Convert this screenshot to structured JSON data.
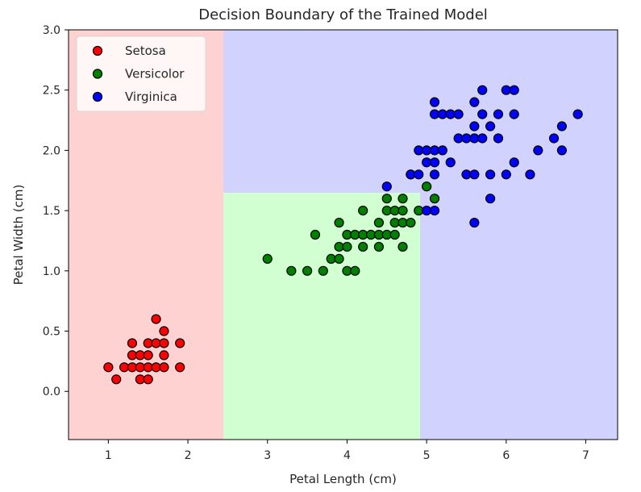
{
  "chart_data": {
    "type": "scatter",
    "title": "Decision Boundary of the Trained Model",
    "xlabel": "Petal Length (cm)",
    "ylabel": "Petal Width (cm)",
    "xlim": [
      0.5,
      7.4
    ],
    "ylim": [
      -0.4,
      3.0
    ],
    "xticks": [
      1,
      2,
      3,
      4,
      5,
      6,
      7
    ],
    "yticks": [
      0.0,
      0.5,
      1.0,
      1.5,
      2.0,
      2.5,
      3.0
    ],
    "xtick_labels": [
      "1",
      "2",
      "3",
      "4",
      "5",
      "6",
      "7"
    ],
    "ytick_labels": [
      "0.0",
      "0.5",
      "1.0",
      "1.5",
      "2.0",
      "2.5",
      "3.0"
    ],
    "grid": false,
    "legend_position": "top-left",
    "decision_regions": [
      {
        "class": "Setosa",
        "color": "#ffd2d2",
        "x": [
          0.5,
          2.45
        ],
        "y": [
          -0.4,
          3.0
        ]
      },
      {
        "class": "Versicolor",
        "color": "#d2ffd2",
        "x": [
          2.45,
          4.92
        ],
        "y": [
          -0.4,
          1.65
        ]
      },
      {
        "class": "Versicolor",
        "color": "#d2ffd2",
        "x": [
          4.92,
          5.45
        ],
        "y": [
          1.55,
          1.72
        ]
      },
      {
        "class": "Virginica",
        "color": "#d2d2ff",
        "x": [
          2.45,
          7.4
        ],
        "y": [
          1.65,
          3.0
        ]
      },
      {
        "class": "Virginica",
        "color": "#d2d2ff",
        "x": [
          4.92,
          7.4
        ],
        "y": [
          -0.4,
          1.65
        ]
      }
    ],
    "series": [
      {
        "name": "Setosa",
        "color": "#ff0000",
        "points": [
          [
            1.0,
            0.2
          ],
          [
            1.1,
            0.1
          ],
          [
            1.2,
            0.2
          ],
          [
            1.3,
            0.2
          ],
          [
            1.3,
            0.3
          ],
          [
            1.3,
            0.4
          ],
          [
            1.4,
            0.1
          ],
          [
            1.4,
            0.2
          ],
          [
            1.4,
            0.3
          ],
          [
            1.5,
            0.1
          ],
          [
            1.5,
            0.2
          ],
          [
            1.5,
            0.3
          ],
          [
            1.5,
            0.4
          ],
          [
            1.6,
            0.2
          ],
          [
            1.6,
            0.4
          ],
          [
            1.6,
            0.6
          ],
          [
            1.7,
            0.2
          ],
          [
            1.7,
            0.3
          ],
          [
            1.7,
            0.4
          ],
          [
            1.7,
            0.5
          ],
          [
            1.9,
            0.2
          ],
          [
            1.9,
            0.4
          ]
        ]
      },
      {
        "name": "Versicolor",
        "color": "#008000",
        "points": [
          [
            3.0,
            1.1
          ],
          [
            3.3,
            1.0
          ],
          [
            3.5,
            1.0
          ],
          [
            3.6,
            1.3
          ],
          [
            3.7,
            1.0
          ],
          [
            3.8,
            1.1
          ],
          [
            3.9,
            1.1
          ],
          [
            3.9,
            1.2
          ],
          [
            3.9,
            1.4
          ],
          [
            4.0,
            1.0
          ],
          [
            4.0,
            1.2
          ],
          [
            4.0,
            1.3
          ],
          [
            4.1,
            1.0
          ],
          [
            4.1,
            1.3
          ],
          [
            4.2,
            1.2
          ],
          [
            4.2,
            1.3
          ],
          [
            4.2,
            1.5
          ],
          [
            4.3,
            1.3
          ],
          [
            4.4,
            1.2
          ],
          [
            4.4,
            1.3
          ],
          [
            4.4,
            1.4
          ],
          [
            4.5,
            1.3
          ],
          [
            4.5,
            1.5
          ],
          [
            4.5,
            1.6
          ],
          [
            4.6,
            1.3
          ],
          [
            4.6,
            1.4
          ],
          [
            4.6,
            1.5
          ],
          [
            4.7,
            1.2
          ],
          [
            4.7,
            1.4
          ],
          [
            4.7,
            1.5
          ],
          [
            4.7,
            1.6
          ],
          [
            4.8,
            1.4
          ],
          [
            4.8,
            1.8
          ],
          [
            4.9,
            1.5
          ],
          [
            5.0,
            1.7
          ],
          [
            5.1,
            1.6
          ]
        ]
      },
      {
        "name": "Virginica",
        "color": "#0000ff",
        "points": [
          [
            4.5,
            1.7
          ],
          [
            4.8,
            1.8
          ],
          [
            4.9,
            1.8
          ],
          [
            4.9,
            2.0
          ],
          [
            5.0,
            1.5
          ],
          [
            5.0,
            1.9
          ],
          [
            5.0,
            2.0
          ],
          [
            5.1,
            1.5
          ],
          [
            5.1,
            1.8
          ],
          [
            5.1,
            1.9
          ],
          [
            5.1,
            2.0
          ],
          [
            5.1,
            2.3
          ],
          [
            5.1,
            2.4
          ],
          [
            5.2,
            2.0
          ],
          [
            5.2,
            2.3
          ],
          [
            5.3,
            1.9
          ],
          [
            5.3,
            2.3
          ],
          [
            5.4,
            2.1
          ],
          [
            5.4,
            2.3
          ],
          [
            5.5,
            1.8
          ],
          [
            5.5,
            2.1
          ],
          [
            5.6,
            1.4
          ],
          [
            5.6,
            1.8
          ],
          [
            5.6,
            2.1
          ],
          [
            5.6,
            2.2
          ],
          [
            5.6,
            2.4
          ],
          [
            5.7,
            2.1
          ],
          [
            5.7,
            2.3
          ],
          [
            5.7,
            2.5
          ],
          [
            5.8,
            1.6
          ],
          [
            5.8,
            1.8
          ],
          [
            5.8,
            2.2
          ],
          [
            5.9,
            2.1
          ],
          [
            5.9,
            2.3
          ],
          [
            6.0,
            1.8
          ],
          [
            6.0,
            2.5
          ],
          [
            6.1,
            1.9
          ],
          [
            6.1,
            2.3
          ],
          [
            6.1,
            2.5
          ],
          [
            6.3,
            1.8
          ],
          [
            6.4,
            2.0
          ],
          [
            6.6,
            2.1
          ],
          [
            6.7,
            2.0
          ],
          [
            6.7,
            2.2
          ],
          [
            6.9,
            2.3
          ]
        ]
      }
    ]
  }
}
